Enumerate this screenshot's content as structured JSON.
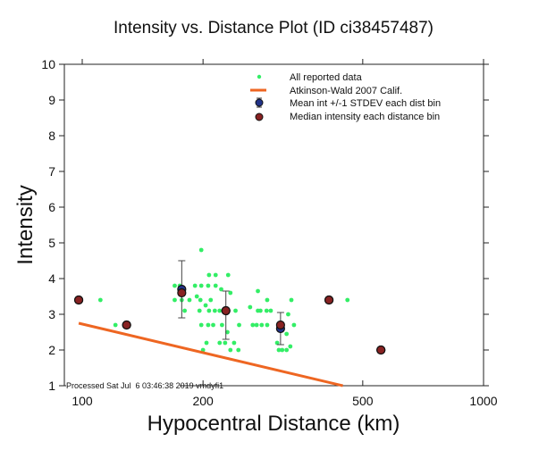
{
  "chart_data": {
    "type": "scatter",
    "title": "Intensity vs. Distance Plot (ID ci38457487)",
    "xlabel": "Hypocentral Distance (km)",
    "ylabel": "Intensity",
    "xscale": "log",
    "xlim": [
      90,
      1000
    ],
    "ylim": [
      1,
      10
    ],
    "xticks": [
      100,
      200,
      500,
      1000
    ],
    "xtick_labels": [
      "100",
      "200",
      "500",
      "1000"
    ],
    "yticks": [
      1,
      2,
      3,
      4,
      5,
      6,
      7,
      8,
      9,
      10
    ],
    "ytick_labels": [
      "1",
      "2",
      "3",
      "4",
      "5",
      "6",
      "7",
      "8",
      "9",
      "10"
    ],
    "grid": false,
    "legend_position": "top-right",
    "footer": "Processed Sat Jul  6 03:46:38 2019 vmdyfi1",
    "colors": {
      "all_data": "#33ee66",
      "atkinson_wald": "#ee6622",
      "mean": "#223388",
      "median": "#882222",
      "axis": "#222222"
    },
    "legend": [
      {
        "label": "All reported data",
        "symbol": "green-dot"
      },
      {
        "label": "Atkinson-Wald 2007 Calif.",
        "symbol": "orange-line"
      },
      {
        "label": "Mean int +/-1 STDEV each dist bin",
        "symbol": "mean-marker"
      },
      {
        "label": "Median intensity each distance bin",
        "symbol": "median-marker"
      }
    ],
    "series": [
      {
        "name": "All reported data",
        "type": "scatter",
        "points": [
          [
            111,
            3.4
          ],
          [
            121,
            2.7
          ],
          [
            170,
            3.8
          ],
          [
            170,
            3.4
          ],
          [
            177,
            3.4
          ],
          [
            185,
            3.4
          ],
          [
            180,
            3.1
          ],
          [
            198,
            4.8
          ],
          [
            175,
            3.8
          ],
          [
            191,
            3.8
          ],
          [
            198,
            3.8
          ],
          [
            206,
            3.8
          ],
          [
            207,
            4.1
          ],
          [
            215,
            4.1
          ],
          [
            231,
            4.1
          ],
          [
            193,
            3.5
          ],
          [
            215,
            3.8
          ],
          [
            222,
            3.7
          ],
          [
            234,
            3.6
          ],
          [
            197,
            3.4
          ],
          [
            209,
            3.4
          ],
          [
            203,
            3.25
          ],
          [
            196,
            3.1
          ],
          [
            207,
            3.1
          ],
          [
            214,
            3.1
          ],
          [
            220,
            3.1
          ],
          [
            241,
            3.1
          ],
          [
            198,
            2.7
          ],
          [
            206,
            2.7
          ],
          [
            212,
            2.7
          ],
          [
            223,
            2.7
          ],
          [
            246,
            2.7
          ],
          [
            266,
            2.7
          ],
          [
            272,
            2.7
          ],
          [
            280,
            2.7
          ],
          [
            230,
            2.5
          ],
          [
            204,
            2.2
          ],
          [
            220,
            2.2
          ],
          [
            227,
            2.2
          ],
          [
            239,
            2.2
          ],
          [
            200,
            2.0
          ],
          [
            234,
            2.0
          ],
          [
            245,
            2.0
          ],
          [
            262,
            3.2
          ],
          [
            274,
            3.1
          ],
          [
            278,
            3.1
          ],
          [
            295,
            3.1
          ],
          [
            274,
            3.65
          ],
          [
            289,
            3.4
          ],
          [
            332,
            3.4
          ],
          [
            288,
            3.1
          ],
          [
            326,
            3.0
          ],
          [
            337,
            2.7
          ],
          [
            323,
            2.45
          ],
          [
            289,
            2.7
          ],
          [
            315,
            2.7
          ],
          [
            306,
            2.2
          ],
          [
            309,
            2.0
          ],
          [
            315,
            2.0
          ],
          [
            330,
            2.1
          ],
          [
            323,
            2.0
          ],
          [
            458,
            3.4
          ]
        ]
      },
      {
        "name": "Atkinson-Wald 2007 Calif.",
        "type": "line",
        "points": [
          [
            98,
            2.75
          ],
          [
            446,
            1.0
          ]
        ]
      },
      {
        "name": "Mean int +/-1 STDEV each dist bin",
        "type": "errorbar",
        "points": [
          {
            "x": 98,
            "y": 3.4,
            "lo": 3.4,
            "hi": 3.4
          },
          {
            "x": 129,
            "y": 2.7,
            "lo": 2.7,
            "hi": 2.7
          },
          {
            "x": 177,
            "y": 3.7,
            "lo": 2.9,
            "hi": 4.5
          },
          {
            "x": 228,
            "y": 3.1,
            "lo": 2.3,
            "hi": 3.65
          },
          {
            "x": 312,
            "y": 2.6,
            "lo": 2.15,
            "hi": 3.05
          },
          {
            "x": 412,
            "y": 3.4,
            "lo": 3.4,
            "hi": 3.4
          },
          {
            "x": 555,
            "y": 2.0,
            "lo": 2.0,
            "hi": 2.0
          }
        ]
      },
      {
        "name": "Median intensity each distance bin",
        "type": "scatter",
        "points": [
          [
            98,
            3.4
          ],
          [
            129,
            2.7
          ],
          [
            177,
            3.6
          ],
          [
            228,
            3.1
          ],
          [
            312,
            2.7
          ],
          [
            412,
            3.4
          ],
          [
            555,
            2.0
          ]
        ]
      }
    ]
  }
}
